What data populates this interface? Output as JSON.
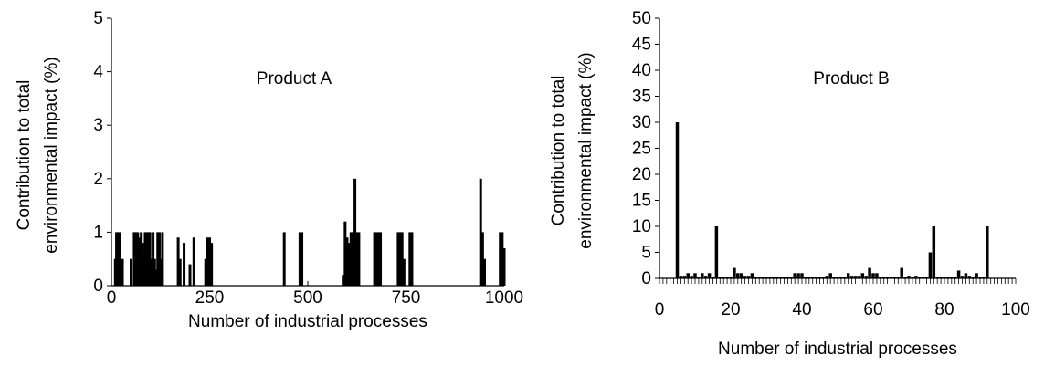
{
  "chart_data": [
    {
      "type": "bar",
      "annotation": "Product A",
      "xlabel": "Number of industrial processes",
      "ylabel_lines": [
        "Contribution to total",
        "environmental impact (%)"
      ],
      "xlim": [
        0,
        1000
      ],
      "ylim": [
        0,
        5
      ],
      "xticks": [
        0,
        250,
        500,
        750,
        1000
      ],
      "yticks": [
        0,
        1,
        2,
        3,
        4,
        5
      ],
      "grid": false,
      "legend": "none",
      "series": [
        {
          "x": [
            10,
            13,
            16,
            19,
            22,
            25,
            28,
            50,
            58,
            61,
            64,
            67,
            70,
            73,
            76,
            79,
            82,
            86,
            90,
            94,
            98,
            102,
            106,
            110,
            114,
            118,
            122,
            126,
            130,
            170,
            175,
            185,
            200,
            210,
            240,
            245,
            250,
            255,
            440,
            480,
            485,
            590,
            595,
            600,
            605,
            610,
            615,
            620,
            625,
            630,
            670,
            675,
            680,
            685,
            730,
            735,
            740,
            745,
            760,
            765,
            940,
            945,
            950,
            990,
            995,
            1000
          ],
          "values": [
            0.5,
            1,
            1,
            0.5,
            1,
            0.3,
            0.5,
            0.5,
            1,
            1,
            0.9,
            1,
            0.9,
            0.5,
            1,
            0.8,
            0.5,
            1,
            1,
            1,
            1,
            0.5,
            1,
            0.5,
            0.3,
            1,
            1,
            0.5,
            1,
            0.9,
            0.5,
            0.8,
            0.4,
            0.9,
            0.5,
            0.9,
            0.9,
            0.8,
            1,
            1,
            1,
            0.2,
            1.2,
            0.9,
            0.8,
            1,
            1,
            2,
            1,
            1,
            1,
            1,
            1,
            1,
            1,
            1,
            1,
            0.5,
            1,
            1,
            2,
            1,
            0.5,
            1,
            1,
            0.7
          ]
        }
      ]
    },
    {
      "type": "bar",
      "annotation": "Product B",
      "xlabel": "Number of industrial processes",
      "ylabel_lines": [
        "Contribution to total",
        "environmental impact (%)"
      ],
      "xlim": [
        0,
        100
      ],
      "ylim": [
        0,
        50
      ],
      "xticks": [
        0,
        20,
        40,
        60,
        80,
        100
      ],
      "yticks": [
        0,
        5,
        10,
        15,
        20,
        25,
        30,
        35,
        40,
        45,
        50
      ],
      "grid": false,
      "legend": "none",
      "series": [
        {
          "x": [
            5,
            6,
            7,
            8,
            9,
            10,
            11,
            12,
            13,
            14,
            15,
            16,
            17,
            18,
            19,
            20,
            21,
            22,
            23,
            24,
            25,
            26,
            27,
            28,
            29,
            30,
            31,
            32,
            33,
            34,
            35,
            36,
            37,
            38,
            39,
            40,
            41,
            42,
            43,
            44,
            45,
            46,
            47,
            48,
            49,
            50,
            51,
            52,
            53,
            54,
            55,
            56,
            57,
            58,
            59,
            60,
            61,
            62,
            63,
            64,
            65,
            66,
            67,
            68,
            69,
            70,
            71,
            72,
            73,
            74,
            75,
            76,
            77,
            78,
            79,
            80,
            81,
            82,
            83,
            84,
            85,
            86,
            87,
            88,
            89,
            90,
            91,
            92
          ],
          "values": [
            30,
            0.5,
            0.5,
            1,
            0.5,
            1,
            0.3,
            1,
            0.5,
            1,
            0.3,
            10,
            0.3,
            0.3,
            0.3,
            0.3,
            2,
            1,
            1,
            0.5,
            0.5,
            1,
            0.3,
            0.3,
            0.3,
            0.3,
            0.3,
            0.3,
            0.3,
            0.3,
            0.3,
            0.3,
            0.3,
            1,
            1,
            1,
            0.3,
            0.3,
            0.3,
            0.3,
            0.3,
            0.3,
            0.5,
            1,
            0.3,
            0.3,
            0.3,
            0.3,
            1,
            0.5,
            0.5,
            0.5,
            1,
            0.5,
            2,
            1,
            1,
            0.3,
            0.3,
            0.3,
            0.3,
            0.3,
            0.3,
            2,
            0.3,
            0.5,
            0.3,
            0.5,
            0.3,
            0.3,
            0.3,
            5,
            10,
            0.3,
            0.3,
            0.3,
            0.3,
            0.3,
            0.3,
            1.5,
            0.5,
            1,
            0.5,
            0.3,
            1,
            0.3,
            0.3,
            10
          ]
        }
      ]
    }
  ]
}
